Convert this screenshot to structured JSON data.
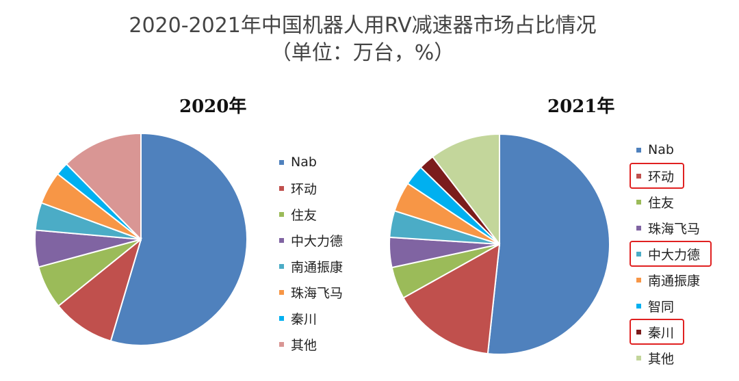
{
  "chart_data": [
    {
      "type": "pie",
      "title": "2020年",
      "categories": [
        "Nab",
        "环动",
        "住友",
        "中大力德",
        "南通振康",
        "珠海飞马",
        "秦川",
        "其他"
      ],
      "values": [
        54.6,
        9.6,
        6.6,
        5.6,
        4.2,
        5.0,
        2.0,
        12.4
      ],
      "colors": [
        "#4F81BD",
        "#C0504D",
        "#9BBB59",
        "#8064A2",
        "#4BACC6",
        "#F79646",
        "#00B0F0",
        "#D99694"
      ]
    },
    {
      "type": "pie",
      "title": "2021年",
      "categories": [
        "Nab",
        "环动",
        "住友",
        "珠海飞马",
        "中大力德",
        "南通振康",
        "智同",
        "秦川",
        "其他"
      ],
      "values": [
        51.7,
        15.2,
        4.7,
        4.4,
        3.9,
        4.4,
        3.0,
        2.3,
        10.4
      ],
      "colors": [
        "#4F81BD",
        "#C0504D",
        "#9BBB59",
        "#8064A2",
        "#4BACC6",
        "#F79646",
        "#00B0F0",
        "#7B1C1C",
        "#C3D69B"
      ],
      "highlighted": [
        "环动",
        "中大力德",
        "秦川"
      ]
    }
  ],
  "title": {
    "line1": "2020-2021年中国机器人用RV减速器市场占比情况",
    "line2": "（单位：万台，%）"
  }
}
